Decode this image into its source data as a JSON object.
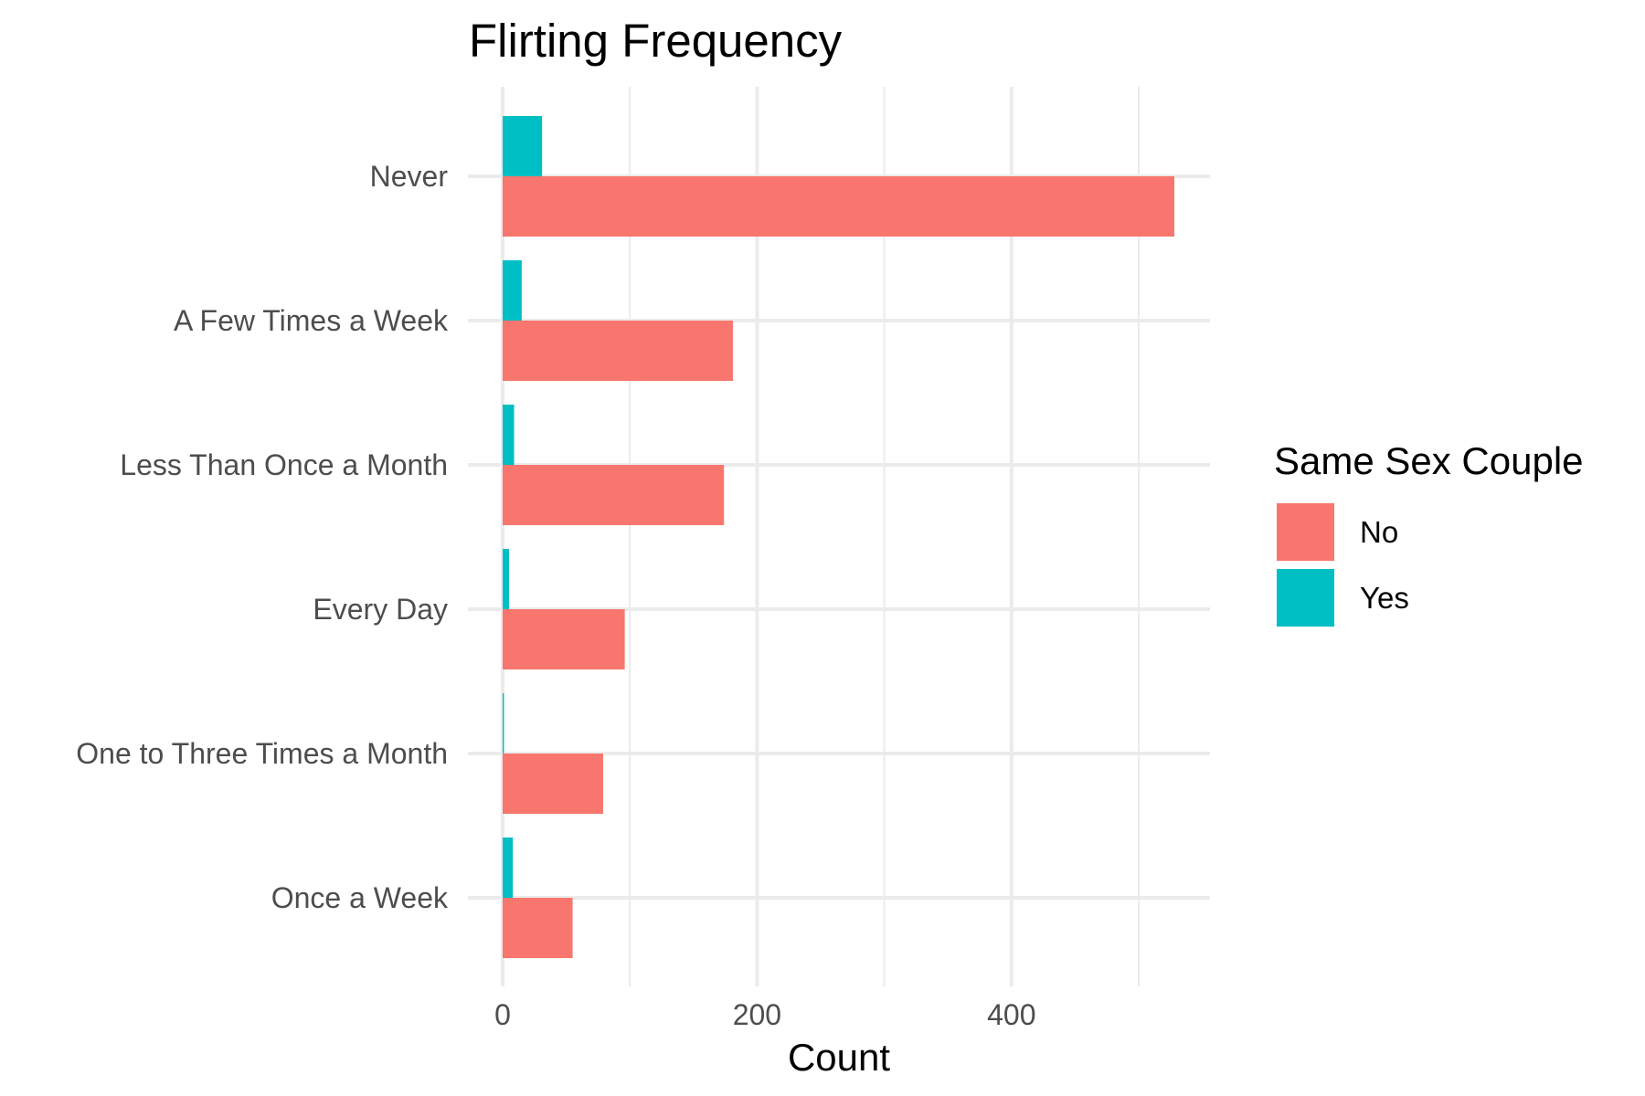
{
  "chart_data": {
    "type": "bar",
    "orientation": "horizontal",
    "title": "Flirting Frequency",
    "xlabel": "Count",
    "ylabel": "",
    "categories": [
      "Never",
      "A Few Times a Week",
      "Less Than Once a Month",
      "Every Day",
      "One to Three Times a Month",
      "Once a Week"
    ],
    "series": [
      {
        "name": "No",
        "color": "#F8766D",
        "values": [
          528,
          181,
          174,
          96,
          79,
          55
        ]
      },
      {
        "name": "Yes",
        "color": "#00BFC4",
        "values": [
          31,
          15,
          9,
          5,
          1,
          8
        ]
      }
    ],
    "xlim": [
      0,
      557
    ],
    "xticks": [
      0,
      200,
      400
    ],
    "grid": true,
    "legend": {
      "title": "Same Sex Couple",
      "position": "right",
      "entries": [
        "No",
        "Yes"
      ]
    }
  }
}
